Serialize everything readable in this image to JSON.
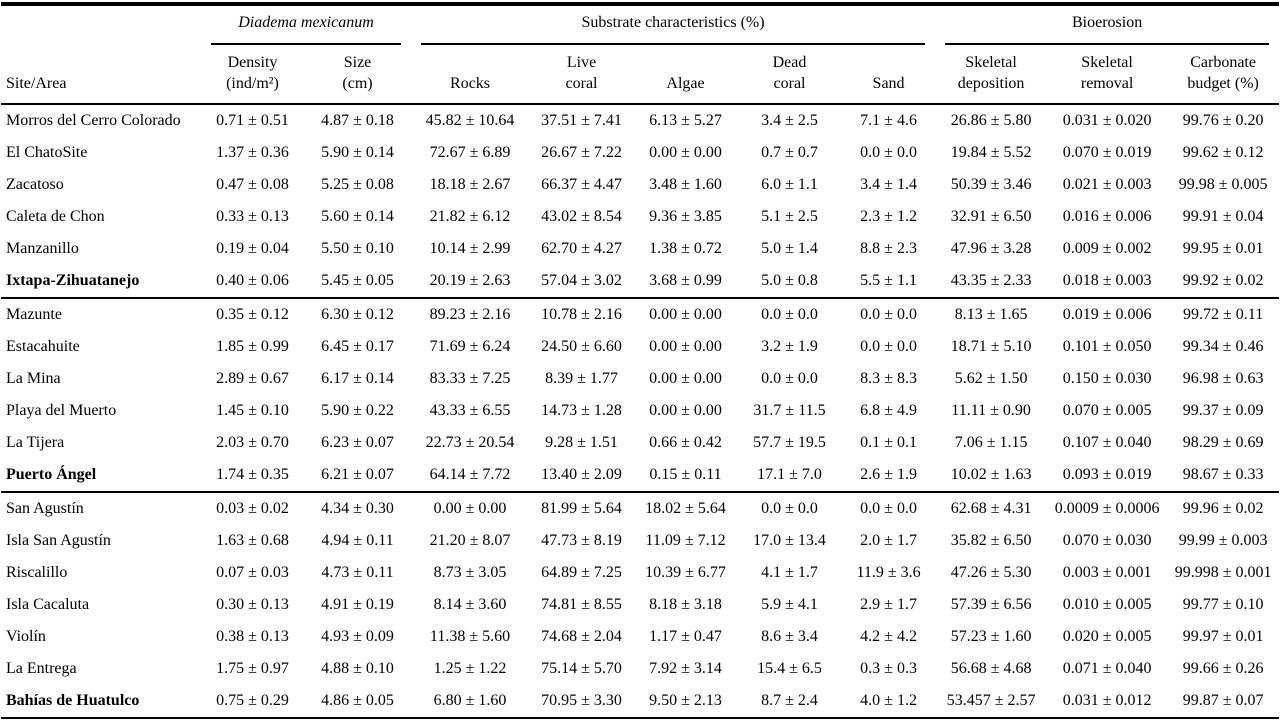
{
  "page": {
    "background": "#ffffff",
    "text_color": "#000000",
    "rule_color": "#000000"
  },
  "table": {
    "groups": [
      {
        "label": "Diadema mexicanum",
        "span": 2,
        "italic": true
      },
      {
        "label": "Substrate characteristics (%)",
        "span": 5,
        "italic": false
      },
      {
        "label": "Bioerosion",
        "span": 3,
        "italic": false
      }
    ],
    "columns": [
      "Site/Area",
      "Density\n(ind/m²)",
      "Size\n(cm)",
      "Rocks",
      "Live\ncoral",
      "Algae",
      "Dead\ncoral",
      "Sand",
      "Skeletal\ndeposition",
      "Skeletal\nremoval",
      "Carbonate\nbudget (%)"
    ],
    "rows": [
      {
        "site": "Morros del Cerro Colorado",
        "bold": false,
        "section_end": false,
        "values": [
          "0.71 ± 0.51",
          "4.87 ± 0.18",
          "45.82 ± 10.64",
          "37.51 ± 7.41",
          "6.13 ± 5.27",
          "3.4 ± 2.5",
          "7.1 ± 4.6",
          "26.86 ± 5.80",
          "0.031 ± 0.020",
          "99.76 ± 0.20"
        ]
      },
      {
        "site": "El ChatoSite",
        "bold": false,
        "section_end": false,
        "values": [
          "1.37 ± 0.36",
          "5.90 ± 0.14",
          "72.67 ± 6.89",
          "26.67 ± 7.22",
          "0.00 ± 0.00",
          "0.7 ± 0.7",
          "0.0 ± 0.0",
          "19.84 ± 5.52",
          "0.070 ± 0.019",
          "99.62 ± 0.12"
        ]
      },
      {
        "site": "Zacatoso",
        "bold": false,
        "section_end": false,
        "values": [
          "0.47 ± 0.08",
          "5.25 ± 0.08",
          "18.18 ± 2.67",
          "66.37 ± 4.47",
          "3.48 ± 1.60",
          "6.0 ± 1.1",
          "3.4 ± 1.4",
          "50.39 ± 3.46",
          "0.021 ± 0.003",
          "99.98 ± 0.005"
        ]
      },
      {
        "site": "Caleta de Chon",
        "bold": false,
        "section_end": false,
        "values": [
          "0.33 ± 0.13",
          "5.60 ± 0.14",
          "21.82 ± 6.12",
          "43.02 ± 8.54",
          "9.36 ± 3.85",
          "5.1 ± 2.5",
          "2.3 ± 1.2",
          "32.91 ± 6.50",
          "0.016 ± 0.006",
          "99.91 ± 0.04"
        ]
      },
      {
        "site": "Manzanillo",
        "bold": false,
        "section_end": false,
        "values": [
          "0.19 ± 0.04",
          "5.50 ± 0.10",
          "10.14 ± 2.99",
          "62.70 ± 4.27",
          "1.38 ± 0.72",
          "5.0 ± 1.4",
          "8.8 ± 2.3",
          "47.96 ± 3.28",
          "0.009 ± 0.002",
          "99.95 ± 0.01"
        ]
      },
      {
        "site": "Ixtapa-Zihuatanejo",
        "bold": true,
        "section_end": true,
        "values": [
          "0.40 ± 0.06",
          "5.45 ± 0.05",
          "20.19 ± 2.63",
          "57.04 ± 3.02",
          "3.68 ± 0.99",
          "5.0 ± 0.8",
          "5.5 ± 1.1",
          "43.35 ± 2.33",
          "0.018 ± 0.003",
          "99.92 ± 0.02"
        ]
      },
      {
        "site": "Mazunte",
        "bold": false,
        "section_end": false,
        "values": [
          "0.35 ± 0.12",
          "6.30 ± 0.12",
          "89.23 ± 2.16",
          "10.78 ± 2.16",
          "0.00 ± 0.00",
          "0.0 ± 0.0",
          "0.0 ± 0.0",
          "8.13 ± 1.65",
          "0.019 ± 0.006",
          "99.72 ± 0.11"
        ]
      },
      {
        "site": "Estacahuite",
        "bold": false,
        "section_end": false,
        "values": [
          "1.85 ± 0.99",
          "6.45 ± 0.17",
          "71.69 ± 6.24",
          "24.50 ± 6.60",
          "0.00 ± 0.00",
          "3.2 ± 1.9",
          "0.0 ± 0.0",
          "18.71 ± 5.10",
          "0.101 ± 0.050",
          "99.34 ± 0.46"
        ]
      },
      {
        "site": "La Mina",
        "bold": false,
        "section_end": false,
        "values": [
          "2.89 ± 0.67",
          "6.17 ± 0.14",
          "83.33 ± 7.25",
          "8.39 ± 1.77",
          "0.00 ± 0.00",
          "0.0 ± 0.0",
          "8.3 ± 8.3",
          "5.62 ± 1.50",
          "0.150 ± 0.030",
          "96.98 ± 0.63"
        ]
      },
      {
        "site": "Playa del Muerto",
        "bold": false,
        "section_end": false,
        "values": [
          "1.45 ± 0.10",
          "5.90 ± 0.22",
          "43.33 ± 6.55",
          "14.73 ± 1.28",
          "0.00 ± 0.00",
          "31.7 ± 11.5",
          "6.8 ± 4.9",
          "11.11 ± 0.90",
          "0.070 ± 0.005",
          "99.37 ± 0.09"
        ]
      },
      {
        "site": "La Tijera",
        "bold": false,
        "section_end": false,
        "values": [
          "2.03 ± 0.70",
          "6.23 ± 0.07",
          "22.73 ± 20.54",
          "9.28 ± 1.51",
          "0.66 ± 0.42",
          "57.7 ± 19.5",
          "0.1 ± 0.1",
          "7.06 ± 1.15",
          "0.107 ± 0.040",
          "98.29 ± 0.69"
        ]
      },
      {
        "site": "Puerto Ángel",
        "bold": true,
        "section_end": true,
        "values": [
          "1.74 ± 0.35",
          "6.21 ± 0.07",
          "64.14 ± 7.72",
          "13.40 ± 2.09",
          "0.15 ± 0.11",
          "17.1 ± 7.0",
          "2.6 ± 1.9",
          "10.02 ± 1.63",
          "0.093 ± 0.019",
          "98.67 ± 0.33"
        ]
      },
      {
        "site": "San Agustín",
        "bold": false,
        "section_end": false,
        "values": [
          "0.03 ± 0.02",
          "4.34 ± 0.30",
          "0.00 ± 0.00",
          "81.99 ± 5.64",
          "18.02 ± 5.64",
          "0.0 ± 0.0",
          "0.0 ± 0.0",
          "62.68 ± 4.31",
          "0.0009 ± 0.0006",
          "99.96 ± 0.02"
        ]
      },
      {
        "site": "Isla San Agustín",
        "bold": false,
        "section_end": false,
        "values": [
          "1.63 ± 0.68",
          "4.94 ± 0.11",
          "21.20 ± 8.07",
          "47.73 ± 8.19",
          "11.09 ± 7.12",
          "17.0 ± 13.4",
          "2.0 ± 1.7",
          "35.82 ± 6.50",
          "0.070 ± 0.030",
          "99.99 ± 0.003"
        ]
      },
      {
        "site": "Riscalillo",
        "bold": false,
        "section_end": false,
        "values": [
          "0.07 ± 0.03",
          "4.73 ± 0.11",
          "8.73 ± 3.05",
          "64.89 ± 7.25",
          "10.39 ± 6.77",
          "4.1 ± 1.7",
          "11.9 ± 3.6",
          "47.26 ± 5.30",
          "0.003 ± 0.001",
          "99.998 ± 0.001"
        ]
      },
      {
        "site": "Isla Cacaluta",
        "bold": false,
        "section_end": false,
        "values": [
          "0.30 ± 0.13",
          "4.91 ± 0.19",
          "8.14 ± 3.60",
          "74.81 ± 8.55",
          "8.18 ± 3.18",
          "5.9 ± 4.1",
          "2.9 ± 1.7",
          "57.39 ± 6.56",
          "0.010 ± 0.005",
          "99.77 ± 0.10"
        ]
      },
      {
        "site": "Violín",
        "bold": false,
        "section_end": false,
        "values": [
          "0.38 ± 0.13",
          "4.93 ± 0.09",
          "11.38 ± 5.60",
          "74.68 ± 2.04",
          "1.17 ± 0.47",
          "8.6 ± 3.4",
          "4.2 ± 4.2",
          "57.23 ± 1.60",
          "0.020 ± 0.005",
          "99.97 ± 0.01"
        ]
      },
      {
        "site": "La Entrega",
        "bold": false,
        "section_end": false,
        "values": [
          "1.75 ± 0.97",
          "4.88 ± 0.10",
          "1.25 ± 1.22",
          "75.14 ± 5.70",
          "7.92 ± 3.14",
          "15.4 ± 6.5",
          "0.3 ± 0.3",
          "56.68 ± 4.68",
          "0.071 ± 0.040",
          "99.66 ± 0.26"
        ]
      },
      {
        "site": "Bahías de Huatulco",
        "bold": true,
        "section_end": true,
        "values": [
          "0.75 ± 0.29",
          "4.86 ± 0.05",
          "6.80 ± 1.60",
          "70.95 ± 3.30",
          "9.50 ± 2.13",
          "8.7 ± 2.4",
          "4.0 ± 1.2",
          "53.457 ± 2.57",
          "0.031 ± 0.012",
          "99.87 ± 0.07"
        ]
      }
    ]
  }
}
